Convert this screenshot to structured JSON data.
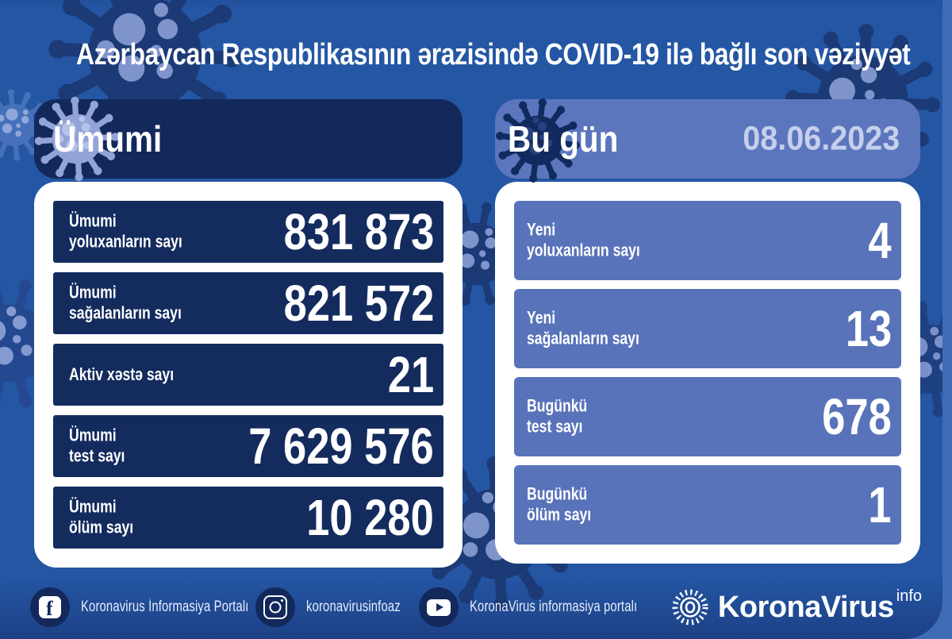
{
  "title": "Azərbaycan Respublikasının ərazisində COVID-19 ilə bağlı son vəziyyət",
  "left_panel": {
    "header": "Ümumi",
    "rows": [
      {
        "label": "Ümumi\nyoluxanların sayı",
        "value": "831 873"
      },
      {
        "label": "Ümumi\nsağalanların sayı",
        "value": "821 572"
      },
      {
        "label": "Aktiv xəstə sayı",
        "value": "21"
      },
      {
        "label": "Ümumi\ntest sayı",
        "value": "7 629 576"
      },
      {
        "label": "Ümumi\nölüm sayı",
        "value": "10 280"
      }
    ]
  },
  "right_panel": {
    "header": "Bu gün",
    "date": "08.06.2023",
    "rows": [
      {
        "label": "Yeni\nyoluxanların sayı",
        "value": "4"
      },
      {
        "label": "Yeni\nsağalanların sayı",
        "value": "13"
      },
      {
        "label": "Bugünkü\ntest sayı",
        "value": "678"
      },
      {
        "label": "Bugünkü\nölüm sayı",
        "value": "1"
      }
    ]
  },
  "footer": {
    "facebook_label": "Koronavirus İnformasiya Portalı",
    "instagram_label": "koronavirusinfoaz",
    "youtube_label": "KoronaVirus informasiya portalı",
    "brand_text": "KoronaVirus",
    "brand_superscript": "info"
  },
  "colors": {
    "background": "#2456a4",
    "outer_frame": "#3e6cb6",
    "navy": "#13295c",
    "periwinkle_row": "#5873b9",
    "periwinkle_header": "#5b76bd",
    "date_text": "#c6cfeb",
    "white": "#ffffff"
  },
  "chart_data": {
    "type": "table",
    "title": "Azərbaycan Respublikasının ərazisində COVID-19 ilə bağlı son vəziyyət",
    "date": "08.06.2023",
    "sections": [
      {
        "name": "Ümumi",
        "rows": [
          [
            "Ümumi yoluxanların sayı",
            831873
          ],
          [
            "Ümumi sağalanların sayı",
            821572
          ],
          [
            "Aktiv xəstə sayı",
            21
          ],
          [
            "Ümumi test sayı",
            7629576
          ],
          [
            "Ümumi ölüm sayı",
            10280
          ]
        ]
      },
      {
        "name": "Bu gün",
        "rows": [
          [
            "Yeni yoluxanların sayı",
            4
          ],
          [
            "Yeni sağalanların sayı",
            13
          ],
          [
            "Bugünkü test sayı",
            678
          ],
          [
            "Bugünkü ölüm sayı",
            1
          ]
        ]
      }
    ]
  }
}
